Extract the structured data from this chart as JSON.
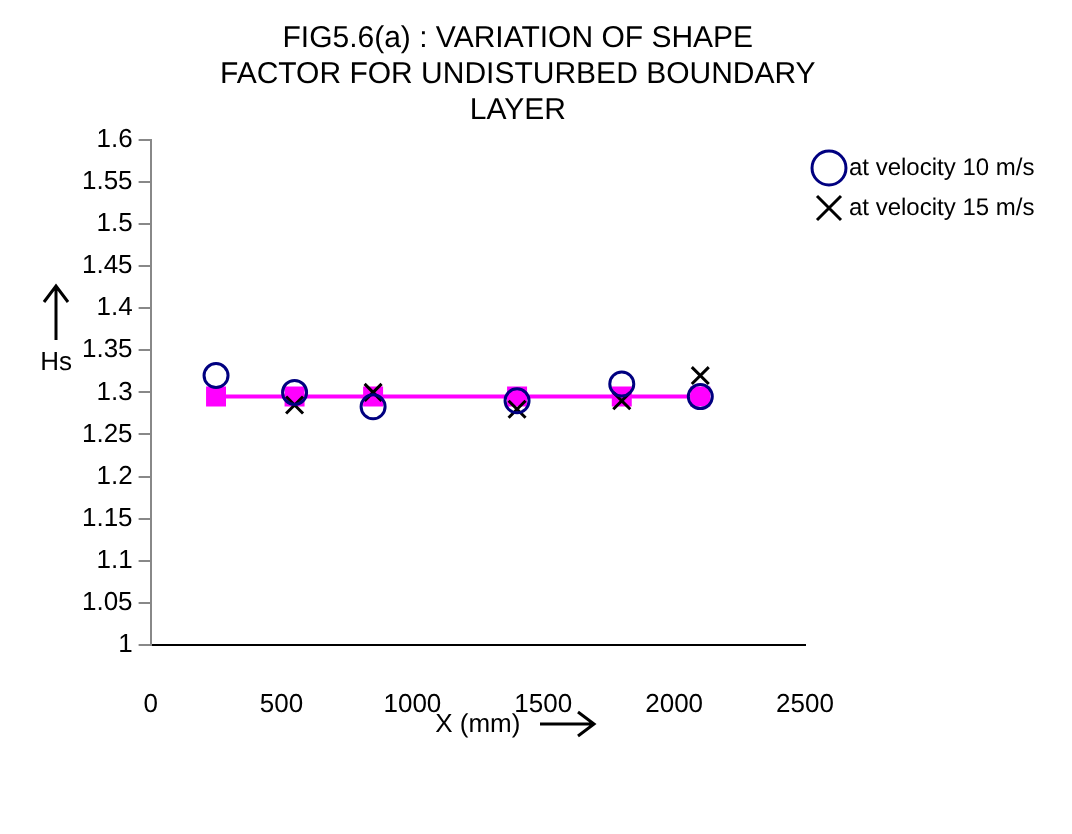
{
  "chart_data": {
    "type": "scatter",
    "title": "FIG5.6(a) : VARIATION OF SHAPE FACTOR FOR UNDISTURBED BOUNDARY LAYER",
    "xlabel": "X (mm)",
    "ylabel": "Hs",
    "x": [
      250,
      550,
      850,
      1400,
      1800,
      2100
    ],
    "series": [
      {
        "name": "at velocity 10 m/s",
        "type": "scatter",
        "marker": "circle",
        "color": "#000080",
        "values": [
          1.32,
          1.3,
          1.283,
          1.29,
          1.31,
          1.295
        ]
      },
      {
        "name": "at velocity 15 m/s",
        "type": "scatter",
        "marker": "cross",
        "color": "#000000",
        "values": [
          null,
          1.285,
          1.3,
          1.28,
          1.29,
          1.32
        ]
      },
      {
        "type": "line",
        "marker": "square",
        "line_style": "solid",
        "color": "#ff00ff",
        "values": [
          1.295,
          1.295,
          1.295,
          1.295,
          1.295,
          1.295
        ]
      }
    ],
    "xlim": [
      0,
      2500
    ],
    "xticks": [
      0,
      500,
      1000,
      1500,
      2000,
      2500
    ],
    "ylim": [
      1,
      1.6
    ],
    "yticks": [
      1,
      1.05,
      1.1,
      1.15,
      1.2,
      1.25,
      1.3,
      1.35,
      1.4,
      1.45,
      1.5,
      1.55,
      1.6
    ],
    "grid": false,
    "legend": "top right"
  }
}
